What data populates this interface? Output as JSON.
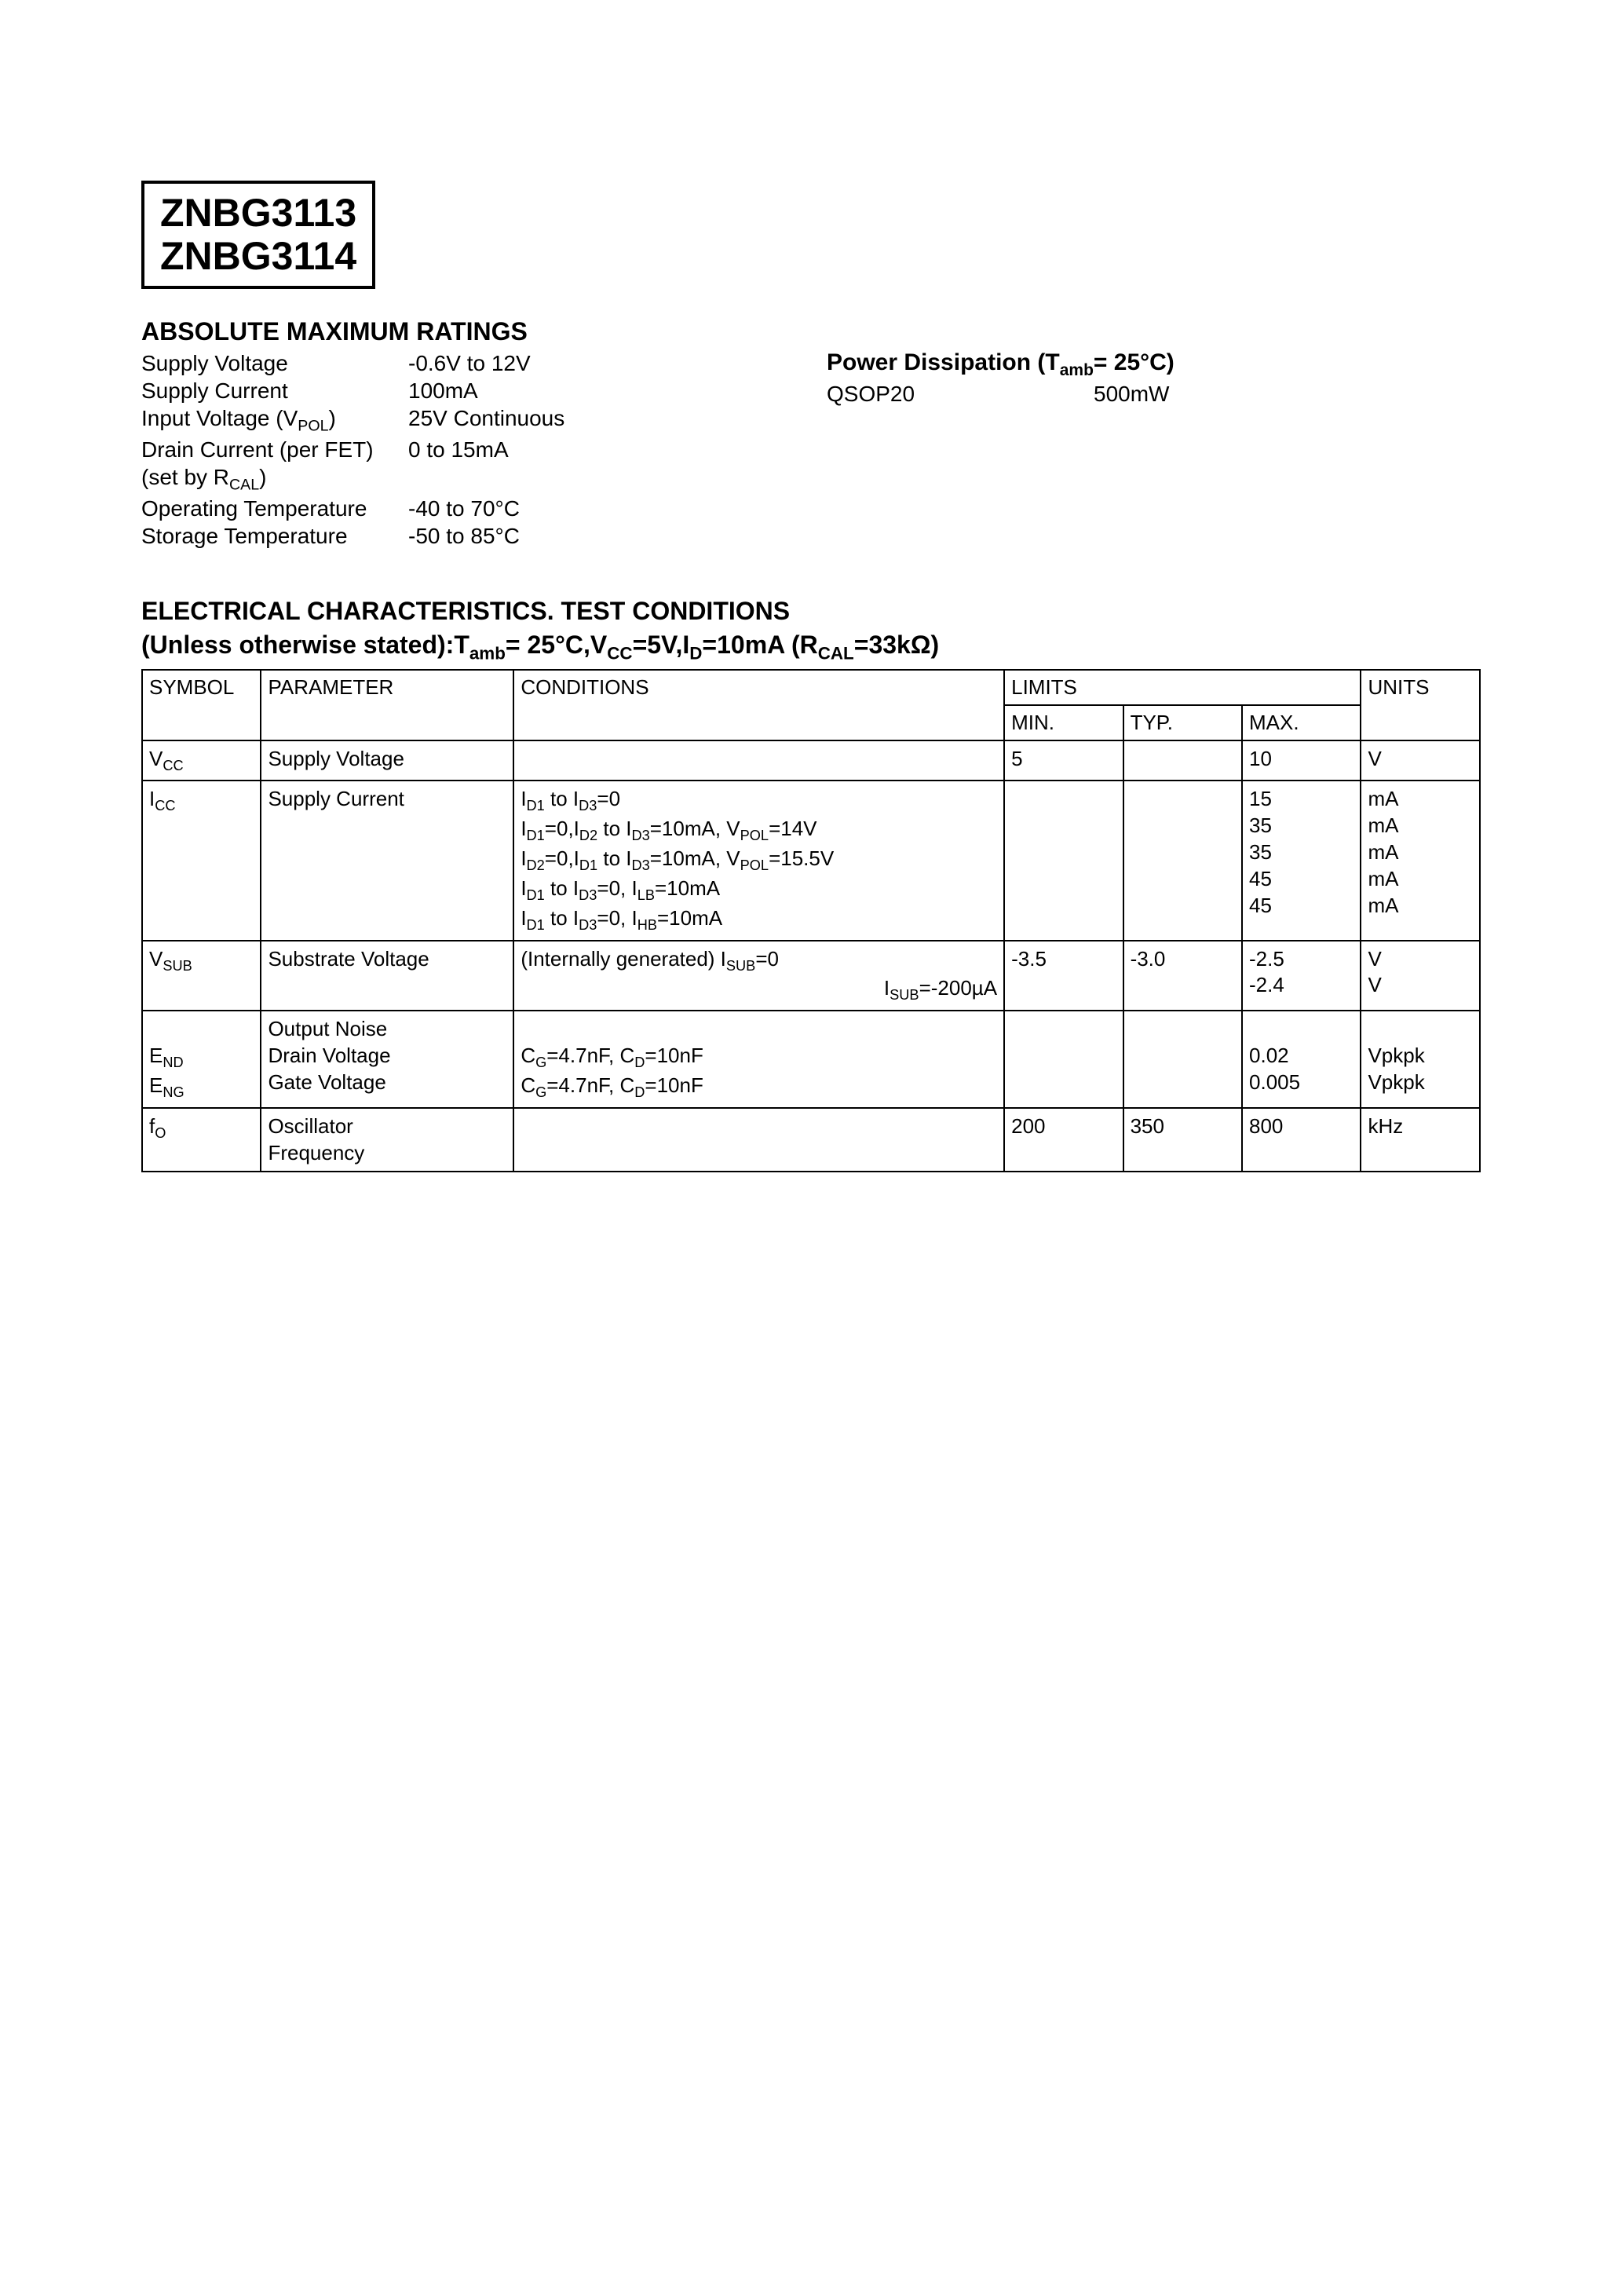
{
  "part_numbers": [
    "ZNBG3113",
    "ZNBG3114"
  ],
  "abs_max": {
    "title": "ABSOLUTE MAXIMUM RATINGS",
    "rows": [
      {
        "label_html": "Supply Voltage",
        "value": "-0.6V to 12V"
      },
      {
        "label_html": "Supply Current",
        "value": "100mA"
      },
      {
        "label_html": "Input Voltage (V<sub>POL</sub>)",
        "value": "25V Continuous"
      },
      {
        "label_html": "Drain Current (per FET)<br>(set by R<sub>CAL</sub>)",
        "value": "0 to 15mA"
      },
      {
        "label_html": "Operating Temperature",
        "value": "-40 to 70°C"
      },
      {
        "label_html": "Storage Temperature",
        "value": "-50 to 85°C"
      }
    ],
    "pd": {
      "title_html": "Power Dissipation (T<sub>amb</sub>= 25°C)",
      "rows": [
        {
          "label": "QSOP20",
          "value": "500mW"
        }
      ]
    }
  },
  "elec": {
    "title": "ELECTRICAL CHARACTERISTICS. TEST CONDITIONS",
    "subtitle_html": "(Unless otherwise stated):T<sub>amb</sub>= 25°C,V<sub>CC</sub>=5V,I<sub>D</sub>=10mA (R<sub>CAL</sub>=33kΩ)",
    "headers": {
      "symbol": "SYMBOL",
      "parameter": "PARAMETER",
      "conditions": "CONDITIONS",
      "limits": "LIMITS",
      "min": "MIN.",
      "typ": "TYP.",
      "max": "MAX.",
      "units": "UNITS"
    },
    "rows": [
      {
        "symbol_html": "V<sub>CC</sub>",
        "parameter": "Supply Voltage",
        "conditions_html": "",
        "min": "5",
        "typ": "",
        "max": "10",
        "units": "V"
      },
      {
        "symbol_html": "I<sub>CC</sub>",
        "parameter": "Supply Current",
        "conditions_html": "I<sub>D1</sub> to I<sub>D3</sub>=0<br>I<sub>D1</sub>=0,I<sub>D2</sub> to I<sub>D3</sub>=10mA, V<sub>POL</sub>=14V<br>I<sub>D2</sub>=0,I<sub>D1</sub> to I<sub>D3</sub>=10mA, V<sub>POL</sub>=15.5V<br>I<sub>D1</sub> to I<sub>D3</sub>=0, I<sub>LB</sub>=10mA<br>I<sub>D1</sub> to I<sub>D3</sub>=0, I<sub>HB</sub>=10mA",
        "min": "",
        "typ": "",
        "max_html": "15<br>35<br>35<br>45<br>45",
        "units_html": "mA<br>mA<br>mA<br>mA<br>mA"
      },
      {
        "symbol_html": "V<sub>SUB</sub>",
        "parameter": "Substrate Voltage",
        "conditions_html": "(Internally generated) I<sub>SUB</sub>=0<br><span style='display:block;text-align:right'>I<sub>SUB</sub>=-200µA</span>",
        "min": "-3.5",
        "typ": "-3.0",
        "max_html": "-2.5<br>-2.4",
        "units_html": "V<br>V"
      },
      {
        "symbol_html": "<br>E<sub>ND</sub><br>E<sub>NG</sub>",
        "parameter_html": "Output Noise<br>Drain Voltage<br>Gate Voltage",
        "conditions_html": "<br>C<sub>G</sub>=4.7nF, C<sub>D</sub>=10nF<br>C<sub>G</sub>=4.7nF, C<sub>D</sub>=10nF",
        "min": "",
        "typ": "",
        "max_html": "<br>0.02<br>0.005",
        "units_html": "<br>Vpkpk<br>Vpkpk"
      },
      {
        "symbol_html": "f<sub>O</sub>",
        "parameter_html": "Oscillator<br>Frequency",
        "conditions_html": "",
        "min": "200",
        "typ": "350",
        "max": "800",
        "units": "kHz"
      }
    ]
  },
  "colors": {
    "text": "#000000",
    "background": "#ffffff",
    "border": "#000000"
  }
}
